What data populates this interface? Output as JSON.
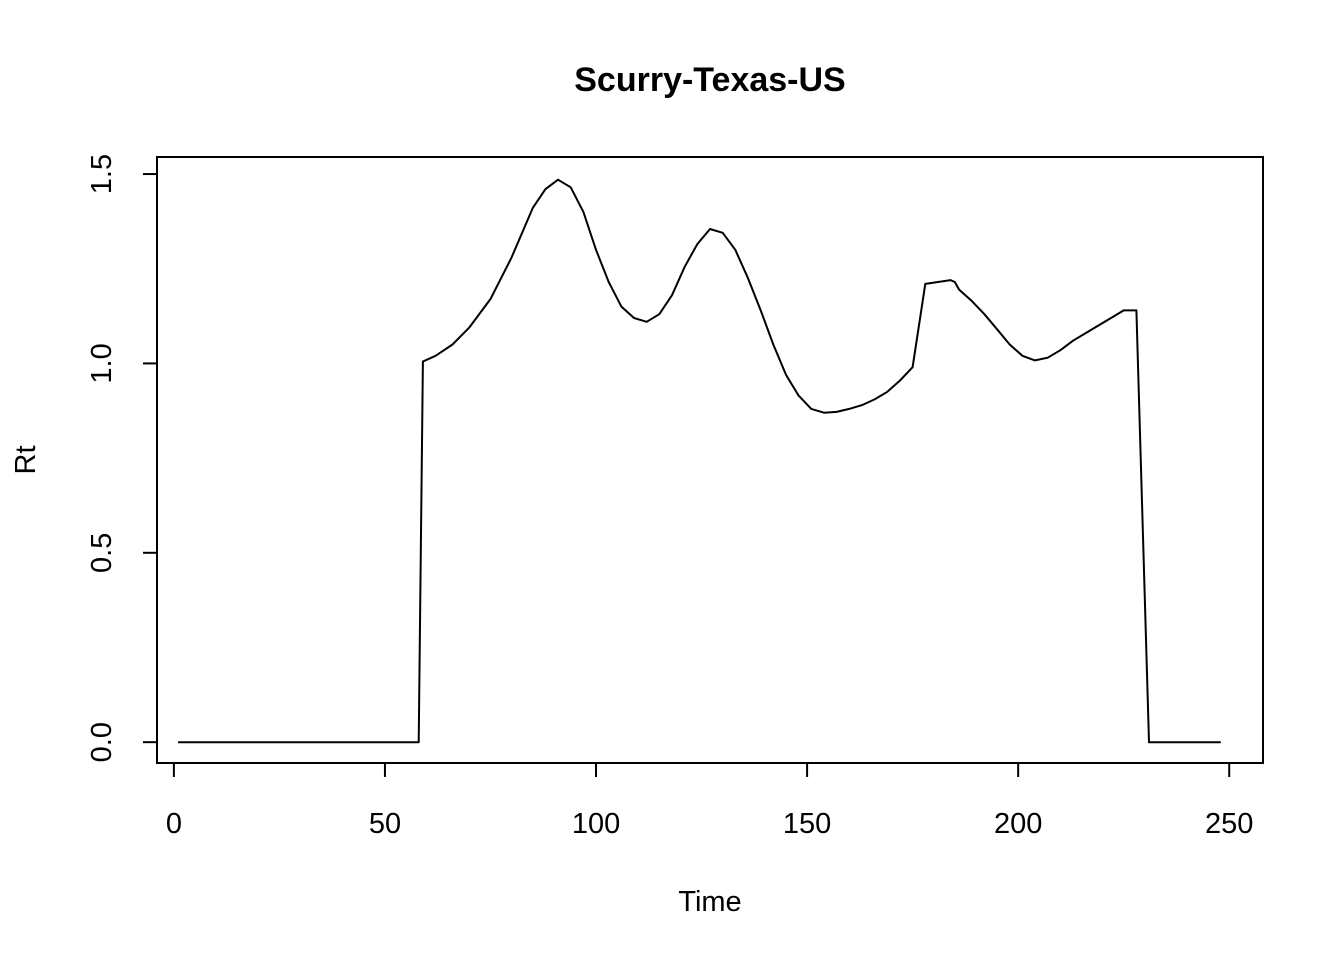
{
  "chart_data": {
    "type": "line",
    "title": "Scurry-Texas-US",
    "xlabel": "Time",
    "ylabel": "Rt",
    "xlim": [
      -4,
      258
    ],
    "ylim": [
      -0.055,
      1.545
    ],
    "xticks": [
      0,
      50,
      100,
      150,
      200,
      250
    ],
    "yticks": [
      0.0,
      0.5,
      1.0,
      1.5
    ],
    "xtick_labels": [
      "0",
      "50",
      "100",
      "150",
      "200",
      "250"
    ],
    "ytick_labels": [
      "0.0",
      "0.5",
      "1.0",
      "1.5"
    ],
    "grid": false,
    "legend": "none",
    "line_color": "#000000",
    "series": [
      {
        "x": [
          1,
          58,
          59,
          62,
          66,
          70,
          75,
          80,
          85,
          88,
          91,
          94,
          97,
          100,
          103,
          106,
          109,
          112,
          115,
          118,
          121,
          124,
          127,
          130,
          133,
          136,
          139,
          142,
          145,
          148,
          151,
          154,
          157,
          160,
          163,
          166,
          169,
          172,
          175,
          178,
          181,
          184,
          185,
          186,
          189,
          192,
          195,
          198,
          201,
          204,
          207,
          210,
          213,
          216,
          219,
          222,
          225,
          228,
          231,
          234,
          236,
          237,
          248
        ],
        "y": [
          0,
          0,
          1.005,
          1.02,
          1.05,
          1.095,
          1.17,
          1.28,
          1.41,
          1.46,
          1.485,
          1.465,
          1.4,
          1.3,
          1.215,
          1.15,
          1.12,
          1.11,
          1.13,
          1.18,
          1.255,
          1.315,
          1.355,
          1.345,
          1.3,
          1.225,
          1.14,
          1.05,
          0.97,
          0.915,
          0.88,
          0.87,
          0.872,
          0.88,
          0.89,
          0.905,
          0.925,
          0.955,
          0.99,
          1.21,
          1.215,
          1.22,
          1.215,
          1.195,
          1.165,
          1.13,
          1.09,
          1.05,
          1.02,
          1.008,
          1.015,
          1.035,
          1.06,
          1.08,
          1.1,
          1.12,
          1.14,
          1.14,
          0,
          0,
          0,
          0,
          0
        ]
      }
    ]
  }
}
